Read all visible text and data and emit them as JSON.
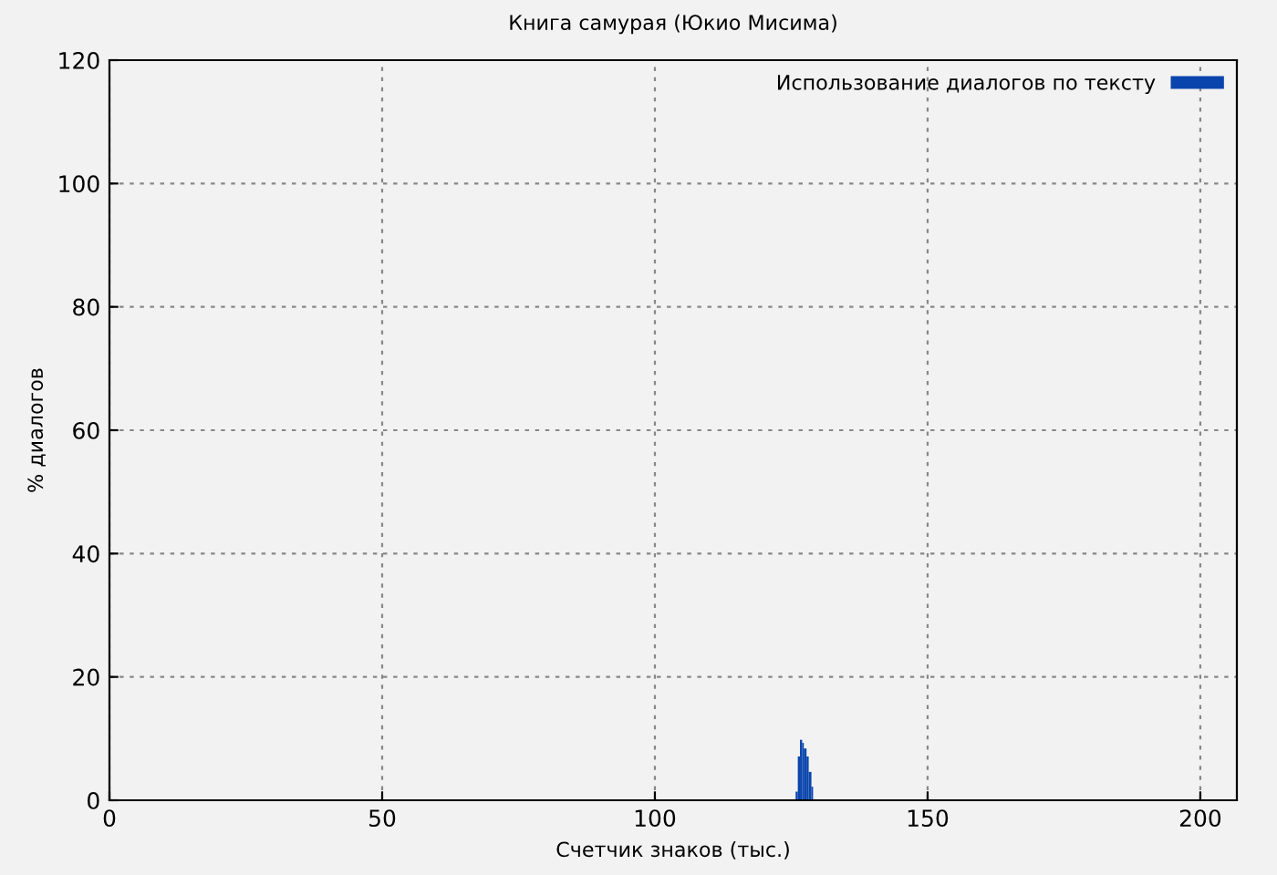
{
  "chart_data": {
    "type": "histogram",
    "title": "Книга самурая (Юкио Мисима)",
    "xlabel": "Счетчик знаков (тыс.)",
    "ylabel": "% диалогов",
    "bins": [
      125.8,
      126.2,
      126.6,
      127.0,
      127.3,
      127.8,
      128.2,
      128.7,
      129.0
    ],
    "series": [
      {
        "name": "Использование диалогов по тексту",
        "color": "#0a45ad",
        "values": [
          1.4,
          7.1,
          9.8,
          9.3,
          8.4,
          7.1,
          4.6,
          2.2
        ]
      }
    ],
    "xlim": [
      0,
      206.7
    ],
    "ylim": [
      0,
      120
    ],
    "xticks": [
      0,
      50,
      100,
      150,
      200
    ],
    "yticks": [
      0,
      20,
      40,
      60,
      80,
      100,
      120
    ],
    "grid": true,
    "legend": "top right"
  }
}
